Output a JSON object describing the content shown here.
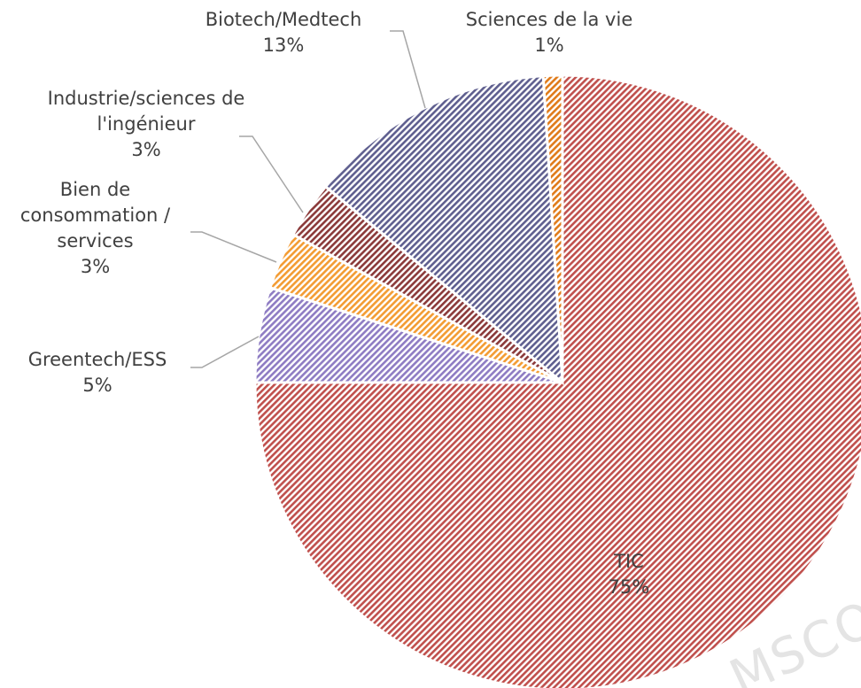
{
  "chart_data": {
    "type": "pie",
    "categories": [
      "TIC",
      "Greentech/ESS",
      "Bien de consommation / services",
      "Industrie/sciences de l'ingénieur",
      "Biotech/Medtech",
      "Sciences de la vie"
    ],
    "values": [
      75,
      5,
      3,
      3,
      13,
      1
    ],
    "value_labels": [
      "75%",
      "5%",
      "3%",
      "3%",
      "13%",
      "1%"
    ],
    "colors": [
      "#c0504d",
      "#8e7cc3",
      "#f39c33",
      "#8b3a3a",
      "#5f5f8f",
      "#e07b1a"
    ],
    "watermark": "MSCO"
  }
}
